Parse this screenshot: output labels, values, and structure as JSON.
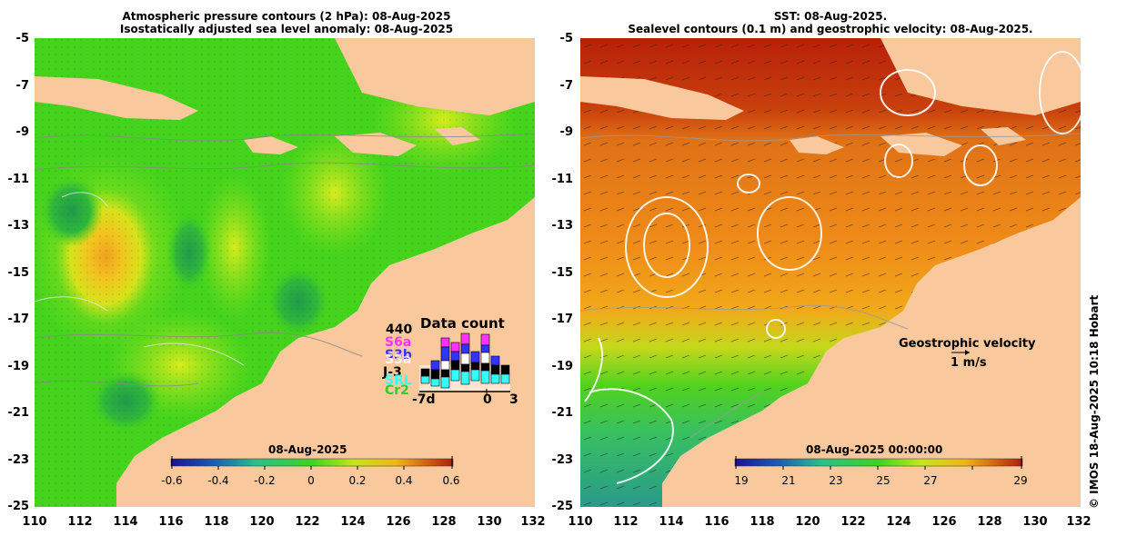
{
  "left_panel": {
    "title_line1": "Atmospheric pressure contours (2 hPa): 08-Aug-2025",
    "title_line2": "Isostatically adjusted sea level anomaly: 08-Aug-2025",
    "colorbar_date": "08-Aug-2025",
    "colorbar_ticks": [
      "-0.6",
      "-0.4",
      "-0.2",
      "0",
      "0.2",
      "0.4",
      "0.6"
    ],
    "data_count": {
      "title": "Data count",
      "max": "440",
      "satellites": [
        {
          "name": "S6a",
          "color": "#ff33ff"
        },
        {
          "name": "S3b",
          "color": "#3333ff"
        },
        {
          "name": "S3a",
          "color": "#ffffff"
        },
        {
          "name": "J-3",
          "color": "#000000"
        },
        {
          "name": "SRL",
          "color": "#33ffff"
        },
        {
          "name": "Cr2",
          "color": "#33cc33"
        }
      ],
      "x_start": "-7d",
      "x_mid": "0",
      "x_end": "3"
    }
  },
  "right_panel": {
    "title_line1": "SST: 08-Aug-2025.",
    "title_line2": "Sealevel contours (0.1 m) and geostrophic velocity: 08-Aug-2025.",
    "colorbar_date": "08-Aug-2025 00:00:00",
    "colorbar_ticks": [
      "19",
      "21",
      "23",
      "25",
      "27",
      "29"
    ],
    "legend_title": "Geostrophic velocity",
    "legend_scale": "1 m/s"
  },
  "y_ticks": [
    "-5",
    "-7",
    "-9",
    "-11",
    "-13",
    "-15",
    "-17",
    "-19",
    "-21",
    "-23",
    "-25"
  ],
  "x_ticks": [
    "110",
    "112",
    "114",
    "116",
    "118",
    "120",
    "122",
    "124",
    "126",
    "128",
    "130",
    "132"
  ],
  "credit": "© IMOS 18-Aug-2025 10:18 Hobart",
  "colors": {
    "land": "#f9c89c",
    "sla_green": "#44d41c",
    "sst_orange": "#f2a21a",
    "sst_red": "#c02a0a"
  }
}
